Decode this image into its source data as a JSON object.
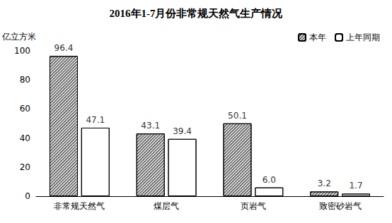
{
  "chart_data": {
    "type": "bar",
    "title": "2016年1-7月份非常规天然气生产情况",
    "y_label": "亿立方米",
    "categories": [
      "非常规天然气",
      "煤层气",
      "页岩气",
      "致密砂岩气"
    ],
    "series": [
      {
        "name": "本年",
        "color": "#d9d9d9",
        "values": [
          96.4,
          43.1,
          50.1,
          3.2
        ]
      },
      {
        "name": "上年同期",
        "color": "#ffffff",
        "values": [
          47.1,
          39.4,
          6.0,
          1.7
        ],
        "value_labels": [
          "47.1",
          "39.4",
          "6.0",
          "1.7"
        ]
      }
    ],
    "ylim": [
      0,
      100
    ],
    "yticks": [
      0,
      20,
      40,
      60,
      80,
      100
    ],
    "grid": false,
    "legend": "top-right",
    "data_labels": true
  }
}
